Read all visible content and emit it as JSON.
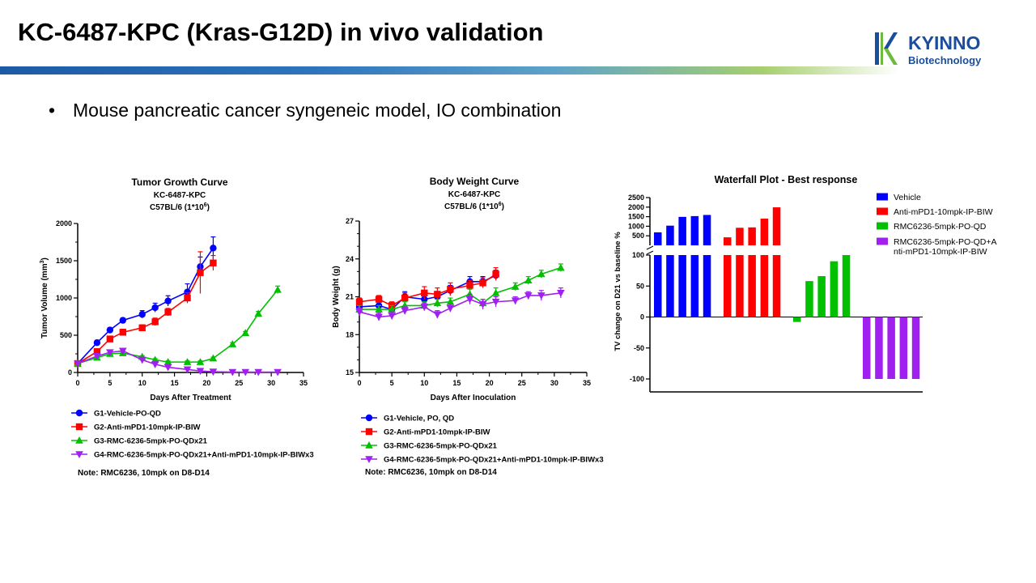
{
  "slide": {
    "title": "KC-6487-KPC (Kras-G12D) in vivo validation",
    "bullet": "Mouse pancreatic cancer syngeneic model, IO combination",
    "logo": {
      "name": "KYINNO",
      "sub": "Biotechnology",
      "colors": [
        "#1a4e9c",
        "#6dbb3e"
      ]
    }
  },
  "chart_data": [
    {
      "type": "line",
      "title": "Tumor Growth Curve",
      "subtitle_lines": [
        "KC-6487-KPC",
        "C57BL/6 (1*10",
        "6",
        ")"
      ],
      "xlabel": "Days After Treatment",
      "ylabel": "Tumor Volume (mm",
      "ylabel_sup": "3",
      "ylabel_end": ")",
      "xlim": [
        0,
        35
      ],
      "ylim": [
        0,
        2000
      ],
      "xticks": [
        "0",
        "5",
        "10",
        "15",
        "20",
        "25",
        "30",
        "35"
      ],
      "yticks": [
        "0",
        "500",
        "1000",
        "1500",
        "2000"
      ],
      "note": "Note: RMC6236, 10mpk on D8-D14",
      "series": [
        {
          "name": "G1-Vehicle-PO-QD",
          "color": "#0000ff",
          "marker": "circle",
          "x": [
            0,
            3,
            5,
            7,
            10,
            12,
            14,
            17,
            19,
            21
          ],
          "y": [
            120,
            400,
            570,
            700,
            780,
            870,
            960,
            1080,
            1420,
            1670
          ],
          "err": [
            20,
            30,
            30,
            30,
            50,
            60,
            70,
            110,
            130,
            150
          ]
        },
        {
          "name": "G2-Anti-mPD1-10mpk-IP-BIW",
          "color": "#ff0000",
          "marker": "square",
          "x": [
            0,
            3,
            5,
            7,
            10,
            12,
            14,
            17,
            19,
            21
          ],
          "y": [
            120,
            280,
            450,
            540,
            600,
            680,
            810,
            1000,
            1340,
            1470
          ],
          "err": [
            20,
            25,
            30,
            40,
            40,
            50,
            50,
            70,
            280,
            100
          ]
        },
        {
          "name": "G3-RMC-6236-5mpk-PO-QDx21",
          "color": "#00c000",
          "marker": "triangle",
          "x": [
            0,
            3,
            5,
            7,
            10,
            12,
            14,
            17,
            19,
            21,
            24,
            26,
            28,
            31
          ],
          "y": [
            120,
            200,
            250,
            260,
            210,
            170,
            140,
            140,
            140,
            190,
            380,
            530,
            790,
            1110
          ],
          "err": [
            10,
            15,
            15,
            15,
            15,
            15,
            15,
            15,
            15,
            15,
            20,
            20,
            30,
            50
          ]
        },
        {
          "name": "G4-RMC-6236-5mpk-PO-QDx21+Anti-mPD1-10mpk-IP-BIWx3",
          "color": "#a020f0",
          "marker": "triangle-down",
          "x": [
            0,
            3,
            5,
            7,
            10,
            12,
            14,
            17,
            19,
            21,
            24,
            26,
            28,
            31
          ],
          "y": [
            120,
            220,
            270,
            290,
            170,
            110,
            70,
            40,
            20,
            10,
            5,
            5,
            5,
            5
          ],
          "err": [
            10,
            15,
            15,
            15,
            15,
            10,
            10,
            10,
            5,
            5,
            5,
            5,
            5,
            5
          ]
        }
      ]
    },
    {
      "type": "line",
      "title": "Body Weight Curve",
      "subtitle_lines": [
        "KC-6487-KPC",
        "C57BL/6 (1*10",
        "6",
        ")"
      ],
      "xlabel": "Days After Inoculation",
      "ylabel": "Body Weight (g)",
      "xlim": [
        0,
        35
      ],
      "ylim": [
        15,
        27
      ],
      "xticks": [
        "0",
        "5",
        "10",
        "15",
        "20",
        "25",
        "30",
        "35"
      ],
      "yticks": [
        "15",
        "18",
        "21",
        "24",
        "27"
      ],
      "note": "Note: RMC6236, 10mpk on D8-D14",
      "series": [
        {
          "name": "G1-Vehicle, PO, QD",
          "color": "#0000ff",
          "marker": "circle",
          "x": [
            0,
            3,
            5,
            7,
            10,
            12,
            14,
            17,
            19,
            21
          ],
          "y": [
            20.2,
            20.3,
            20.0,
            21.0,
            20.8,
            21.0,
            21.5,
            22.2,
            22.2,
            22.7
          ],
          "err": [
            0.3,
            0.3,
            0.3,
            0.4,
            0.4,
            0.4,
            0.4,
            0.4,
            0.4,
            0.4
          ]
        },
        {
          "name": "G2-Anti-mPD1-10mpk-IP-BIW",
          "color": "#ff0000",
          "marker": "square",
          "x": [
            0,
            3,
            5,
            7,
            10,
            12,
            14,
            17,
            19,
            21
          ],
          "y": [
            20.6,
            20.8,
            20.3,
            20.9,
            21.3,
            21.2,
            21.6,
            21.9,
            22.1,
            22.8
          ],
          "err": [
            0.3,
            0.3,
            0.3,
            0.4,
            0.5,
            0.5,
            0.5,
            0.4,
            0.4,
            0.5
          ]
        },
        {
          "name": "G3-RMC-6236-5mpk-PO-QDx21",
          "color": "#00c000",
          "marker": "triangle",
          "x": [
            0,
            3,
            5,
            7,
            10,
            12,
            14,
            17,
            19,
            21,
            24,
            26,
            28,
            31
          ],
          "y": [
            20.0,
            20.0,
            20.0,
            20.3,
            20.3,
            20.5,
            20.6,
            21.2,
            20.5,
            21.3,
            21.8,
            22.3,
            22.8,
            23.3
          ],
          "err": [
            0.3,
            0.3,
            0.3,
            0.3,
            0.3,
            0.3,
            0.3,
            0.4,
            0.3,
            0.4,
            0.3,
            0.3,
            0.3,
            0.3
          ]
        },
        {
          "name": "G4-RMC-6236-5mpk-PO-QDx21+Anti-mPD1-10mpk-IP-BIWx3",
          "color": "#a020f0",
          "marker": "triangle-down",
          "x": [
            0,
            3,
            5,
            7,
            10,
            12,
            14,
            17,
            19,
            21,
            24,
            26,
            28,
            31
          ],
          "y": [
            19.8,
            19.4,
            19.5,
            19.9,
            20.2,
            19.6,
            20.1,
            20.8,
            20.4,
            20.6,
            20.7,
            21.1,
            21.1,
            21.3
          ],
          "err": [
            0.3,
            0.3,
            0.3,
            0.3,
            0.3,
            0.3,
            0.3,
            0.4,
            0.4,
            0.4,
            0.3,
            0.3,
            0.4,
            0.4
          ]
        }
      ]
    },
    {
      "type": "bar",
      "title": "Waterfall Plot - Best response",
      "ylabel": "TV change on D21 vs baseline %",
      "broken_axis": true,
      "lower_ylim": [
        -100,
        100
      ],
      "upper_ylim": [
        0,
        2500
      ],
      "lower_yticks": [
        "-100",
        "-50",
        "0",
        "50",
        "100"
      ],
      "upper_yticks": [
        "500",
        "1000",
        "1500",
        "2000",
        "2500"
      ],
      "legend_position": "right",
      "series": [
        {
          "name": "Vehicle",
          "color": "#0000ff",
          "values": [
            680,
            1030,
            1490,
            1530,
            1590
          ]
        },
        {
          "name": "Anti-mPD1-10mpk-IP-BIW",
          "color": "#ff0000",
          "values": [
            420,
            920,
            940,
            1400,
            1990
          ]
        },
        {
          "name": "RMC6236-5mpk-PO-QD",
          "color": "#00c000",
          "values": [
            -8,
            58,
            66,
            90,
            100
          ]
        },
        {
          "name": "RMC6236-5mpk-PO-QD+Anti-mPD1-10mpk-IP-BIW",
          "name_lines": [
            "RMC6236-5mpk-PO-QD+A",
            "nti-mPD1-10mpk-IP-BIW"
          ],
          "color": "#a020f0",
          "values": [
            -100,
            -100,
            -100,
            -100,
            -100
          ]
        }
      ]
    }
  ]
}
